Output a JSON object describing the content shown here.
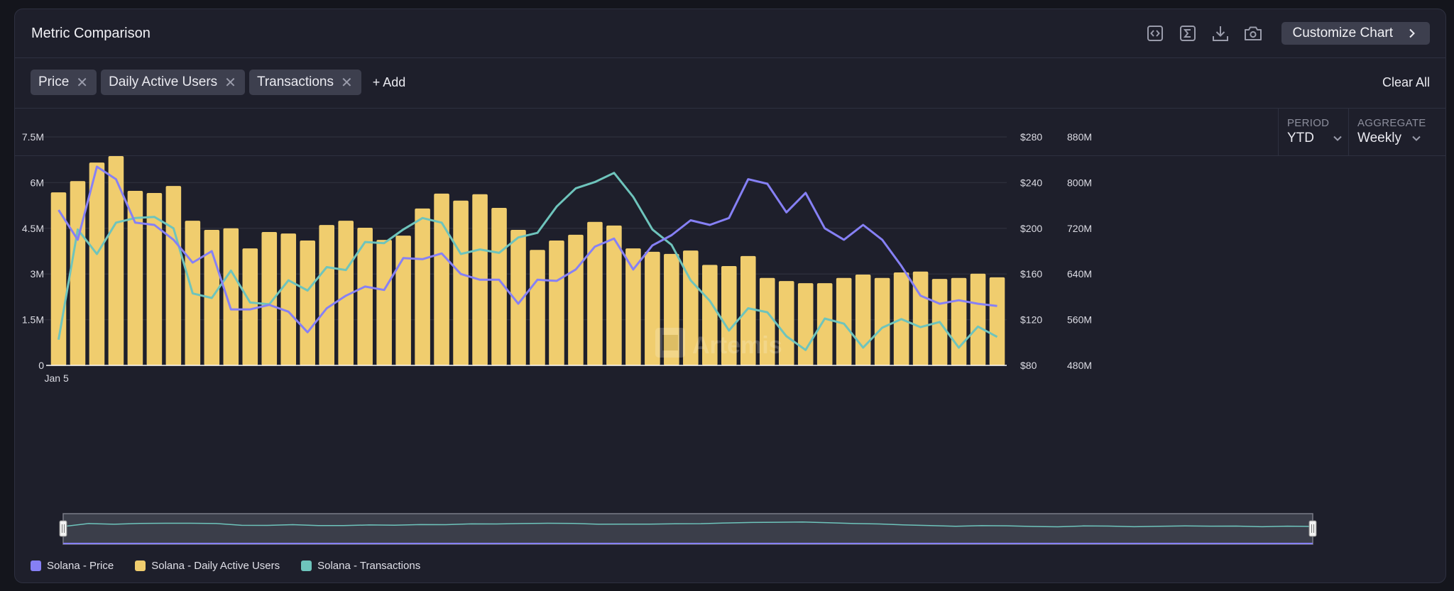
{
  "header": {
    "title": "Metric Comparison",
    "tools": [
      {
        "name": "embed-icon",
        "glyph": "<>"
      },
      {
        "name": "sigma-icon",
        "glyph": "Σ"
      },
      {
        "name": "download-icon",
        "glyph": "↓"
      },
      {
        "name": "camera-icon",
        "glyph": "camera"
      }
    ],
    "customize_label": "Customize Chart"
  },
  "metrics": {
    "chips": [
      {
        "label": "Price"
      },
      {
        "label": "Daily Active Users"
      },
      {
        "label": "Transactions"
      }
    ],
    "add_label": "+ Add",
    "clear_label": "Clear All"
  },
  "controls": {
    "period": {
      "label": "PERIOD",
      "value": "YTD"
    },
    "aggregate": {
      "label": "AGGREGATE",
      "value": "Weekly"
    }
  },
  "watermark": "Artemis",
  "colors": {
    "price": "#8680f5",
    "dau": "#f0cd6e",
    "transactions": "#6ec4bc",
    "background": "#1e1f2b",
    "grid": "#2c2e3b"
  },
  "chart_data": {
    "type": "bar",
    "title": "Metric Comparison",
    "x_start_label": "Jan 5",
    "xlabel": "",
    "categories_count": 50,
    "left_axis": {
      "ticks": [
        "0",
        "1.5M",
        "3M",
        "4.5M",
        "6M",
        "7.5M"
      ],
      "ylim": [
        0,
        7500000
      ]
    },
    "right_axis_price": {
      "ticks": [
        "$80",
        "$120",
        "$160",
        "$200",
        "$240",
        "$280"
      ],
      "ylim": [
        80,
        280
      ]
    },
    "right_axis_transactions": {
      "ticks": [
        "480M",
        "560M",
        "640M",
        "720M",
        "800M",
        "880M"
      ],
      "ylim": [
        480000000,
        880000000
      ]
    },
    "grid": true,
    "legend_position": "bottom-left",
    "series": [
      {
        "name": "Solana - Price",
        "type": "line",
        "axis": "price",
        "values": [
          216,
          190,
          254,
          243,
          205,
          203,
          190,
          170,
          180,
          129,
          129,
          133,
          127,
          109,
          130,
          141,
          149,
          146,
          174,
          173,
          178,
          160,
          155,
          155,
          134,
          155,
          154,
          164,
          184,
          191,
          164,
          185,
          194,
          207,
          203,
          209,
          243,
          239,
          214,
          231,
          200,
          190,
          203,
          190,
          167,
          141,
          134,
          137,
          134,
          132
        ]
      },
      {
        "name": "Solana - Daily Active Users",
        "type": "bar",
        "axis": "left",
        "values": [
          5.68,
          6.05,
          6.66,
          6.87,
          5.73,
          5.66,
          5.89,
          4.75,
          4.45,
          4.5,
          3.84,
          4.38,
          4.33,
          4.1,
          4.61,
          4.75,
          4.52,
          4.12,
          4.26,
          5.15,
          5.64,
          5.41,
          5.62,
          5.17,
          4.45,
          3.79,
          4.1,
          4.29,
          4.71,
          4.59,
          3.84,
          3.73,
          3.66,
          3.77,
          3.3,
          3.26,
          3.59,
          2.87,
          2.77,
          2.7,
          2.7,
          2.87,
          2.98,
          2.87,
          3.05,
          3.08,
          2.84,
          2.87,
          3.01,
          2.89
        ]
      },
      {
        "name": "Solana - Transactions",
        "type": "line",
        "axis": "transactions",
        "values": [
          525,
          718,
          675,
          730,
          738,
          740,
          720,
          606,
          598,
          646,
          590,
          587,
          629,
          611,
          652,
          647,
          696,
          694,
          718,
          738,
          730,
          675,
          683,
          677,
          704,
          712,
          758,
          790,
          801,
          817,
          775,
          718,
          691,
          629,
          593,
          541,
          580,
          573,
          531,
          507,
          562,
          553,
          511,
          546,
          561,
          547,
          556,
          511,
          548,
          530
        ]
      }
    ]
  },
  "axis_label": "Jan 5",
  "legend": [
    {
      "label": "Solana - Price",
      "color": "#8680f5"
    },
    {
      "label": "Solana - Daily Active Users",
      "color": "#f0cd6e"
    },
    {
      "label": "Solana - Transactions",
      "color": "#6ec4bc"
    }
  ]
}
